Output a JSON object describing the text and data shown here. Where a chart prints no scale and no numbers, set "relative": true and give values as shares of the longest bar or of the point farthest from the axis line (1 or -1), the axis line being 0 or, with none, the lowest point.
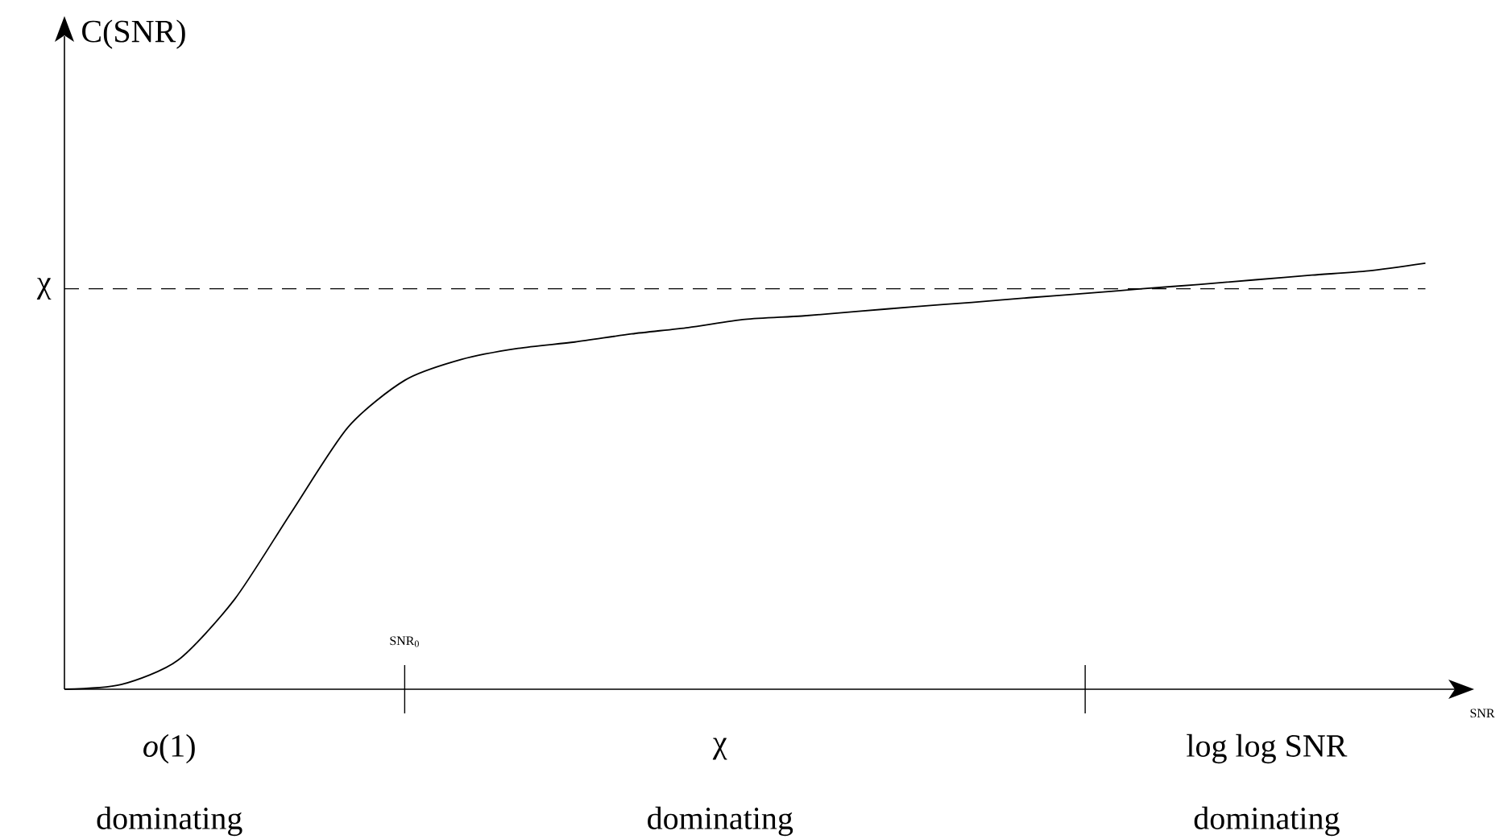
{
  "chart_data": {
    "type": "line",
    "relative": true,
    "categories": [
      null,
      null,
      null,
      null,
      null,
      null,
      null,
      null,
      null,
      null,
      null,
      null,
      null,
      null,
      null,
      null,
      null,
      null,
      null,
      null,
      null,
      null,
      null,
      null,
      null
    ],
    "series": [
      {
        "color": "#000000",
        "values": [
          0,
          0.011,
          0.068,
          0.211,
          0.415,
          0.615,
          0.725,
          0.774,
          0.8,
          0.815,
          0.834,
          0.849,
          0.868,
          0.876,
          0.887,
          0.898,
          0.908,
          0.919,
          0.929,
          0.94,
          0.95,
          0.961,
          0.972,
          0.982,
          1
        ]
      }
    ],
    "xlabel": "SNR",
    "ref_lines": [
      {
        "axis": "y",
        "value": 0.94,
        "label": "χ",
        "line_style": "dashed"
      }
    ],
    "annotations": [
      "C(SNR)",
      "SNR$_{0}$",
      "*o*(1)",
      "dominating",
      "χ",
      "dominating",
      "log log SNR",
      "dominating"
    ]
  }
}
